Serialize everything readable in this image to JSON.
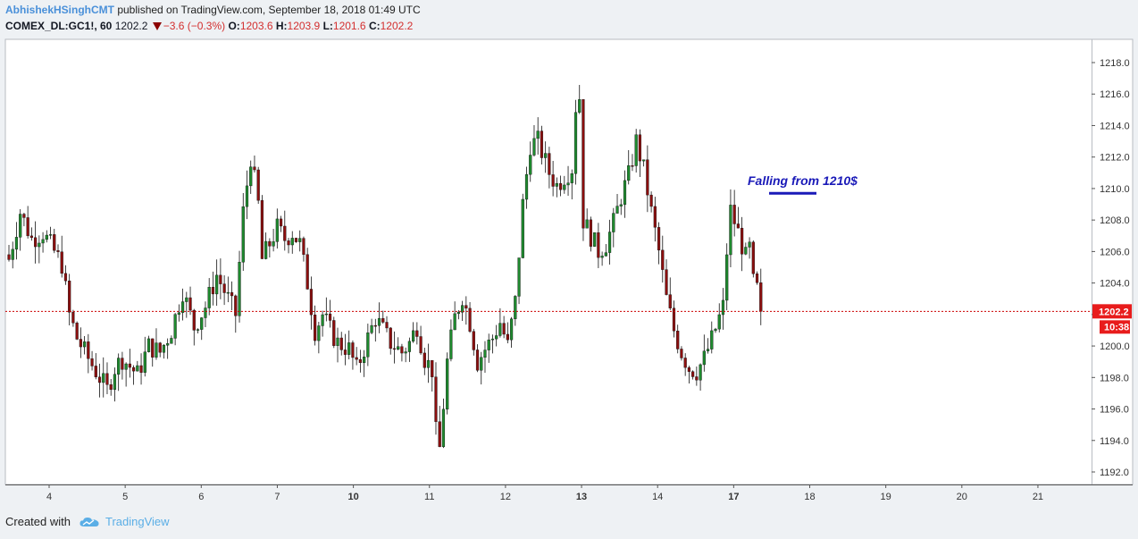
{
  "header": {
    "author": "AbhishekHSinghCMT",
    "published": " published on TradingView.com, September 18, 2018 01:49 UTC",
    "symbol": "COMEX_DL:GC1!, 60",
    "last": "1202.2",
    "change": "−3.6 (−0.3%)",
    "open_label": "O:",
    "open": "1203.6",
    "high_label": "H:",
    "high": "1203.9",
    "low_label": "L:",
    "low": "1201.6",
    "close_label": "C:",
    "close": "1202.2"
  },
  "footer": {
    "created_with": "Created with",
    "brand": "TradingView",
    "logo_icon": "tradingview-cloud-icon"
  },
  "colors": {
    "up": "#1e8a2e",
    "down": "#8b0f0f",
    "price_line": "#cc0000",
    "annotation": "#1a1ab8",
    "background": "#ffffff",
    "page": "#eef1f4"
  },
  "chart_data": {
    "type": "candlestick",
    "timeframe": "60",
    "ylim": [
      1191,
      1219.5
    ],
    "y_ticks": [
      1192,
      1194,
      1196,
      1198,
      1200,
      1202,
      1204,
      1206,
      1208,
      1210,
      1212,
      1214,
      1216,
      1218
    ],
    "y_tick_labels": [
      "1192.0",
      "1194.0",
      "1196.0",
      "1198.0",
      "1200.0",
      "1202.0",
      "1204.0",
      "1206.0",
      "1208.0",
      "1210.0",
      "1212.0",
      "1214.0",
      "1216.0",
      "1218.0"
    ],
    "x_labels": [
      "4",
      "5",
      "6",
      "7",
      "10",
      "11",
      "12",
      "13",
      "14",
      "17",
      "18",
      "19",
      "20",
      "21"
    ],
    "x_label_bold": [
      "10",
      "13",
      "17"
    ],
    "current_price_label": "1202.2",
    "countdown_label": "10:38",
    "current_price": 1202.2,
    "annotation": {
      "text": "Falling from 1210$",
      "level": 1209.7
    },
    "grid": false,
    "close_path": [
      [
        0,
        1205.5
      ],
      [
        3,
        1208.5
      ],
      [
        6,
        1206.8
      ],
      [
        9,
        1207.2
      ],
      [
        12,
        1206.0
      ],
      [
        14,
        1205.2
      ],
      [
        16,
        1202.0
      ],
      [
        18,
        1200.5
      ],
      [
        21,
        1199.2
      ],
      [
        24,
        1198.0
      ],
      [
        26,
        1197.2
      ],
      [
        28,
        1198.6
      ],
      [
        30,
        1199.2
      ],
      [
        34,
        1198.2
      ],
      [
        37,
        1200.0
      ],
      [
        40,
        1199.6
      ],
      [
        43,
        1201.0
      ],
      [
        46,
        1203.5
      ],
      [
        49,
        1201.2
      ],
      [
        52,
        1202.5
      ],
      [
        55,
        1204.5
      ],
      [
        58,
        1203.0
      ],
      [
        60,
        1202.0
      ],
      [
        62,
        1208.5
      ],
      [
        64,
        1212.0
      ],
      [
        66,
        1209.0
      ],
      [
        67,
        1205.5
      ],
      [
        69,
        1206.5
      ],
      [
        71,
        1207.5
      ],
      [
        73,
        1206.8
      ],
      [
        75,
        1207.2
      ],
      [
        77,
        1206.5
      ],
      [
        79,
        1204.0
      ],
      [
        81,
        1201.0
      ],
      [
        83,
        1202.0
      ],
      [
        85,
        1201.0
      ],
      [
        87,
        1200.2
      ],
      [
        90,
        1199.8
      ],
      [
        92,
        1198.5
      ],
      [
        95,
        1200.5
      ],
      [
        97,
        1201.8
      ],
      [
        99,
        1201.0
      ],
      [
        101,
        1200.2
      ],
      [
        104,
        1199.6
      ],
      [
        106,
        1200.2
      ],
      [
        108,
        1201.3
      ],
      [
        110,
        1199.2
      ],
      [
        112,
        1198.5
      ],
      [
        113,
        1194.5
      ],
      [
        114,
        1193.5
      ],
      [
        116,
        1199.0
      ],
      [
        118,
        1201.8
      ],
      [
        120,
        1203.2
      ],
      [
        122,
        1201.5
      ],
      [
        124,
        1199.0
      ],
      [
        126,
        1199.8
      ],
      [
        128,
        1200.5
      ],
      [
        130,
        1201.5
      ],
      [
        132,
        1200.0
      ],
      [
        134,
        1202.8
      ],
      [
        136,
        1209.0
      ],
      [
        138,
        1212.8
      ],
      [
        140,
        1213.0
      ],
      [
        143,
        1211.0
      ],
      [
        145,
        1210.2
      ],
      [
        147,
        1210.8
      ],
      [
        149,
        1211.3
      ],
      [
        150,
        1215.2
      ],
      [
        151,
        1215.8
      ],
      [
        152,
        1208.0
      ],
      [
        154,
        1207.0
      ],
      [
        156,
        1206.0
      ],
      [
        158,
        1206.5
      ],
      [
        160,
        1207.8
      ],
      [
        162,
        1209.5
      ],
      [
        164,
        1210.8
      ],
      [
        166,
        1213.0
      ],
      [
        168,
        1211.2
      ],
      [
        170,
        1208.5
      ],
      [
        172,
        1206.0
      ],
      [
        174,
        1203.0
      ],
      [
        176,
        1201.0
      ],
      [
        178,
        1199.6
      ],
      [
        180,
        1198.6
      ],
      [
        182,
        1198.4
      ],
      [
        184,
        1199.2
      ],
      [
        186,
        1200.4
      ],
      [
        188,
        1201.8
      ],
      [
        189,
        1202.5
      ],
      [
        190,
        1206.0
      ],
      [
        191,
        1208.6
      ],
      [
        193,
        1207.2
      ],
      [
        195,
        1205.6
      ],
      [
        196,
        1206.2
      ],
      [
        197,
        1204.0
      ],
      [
        198,
        1203.6
      ],
      [
        199,
        1202.2
      ]
    ]
  }
}
